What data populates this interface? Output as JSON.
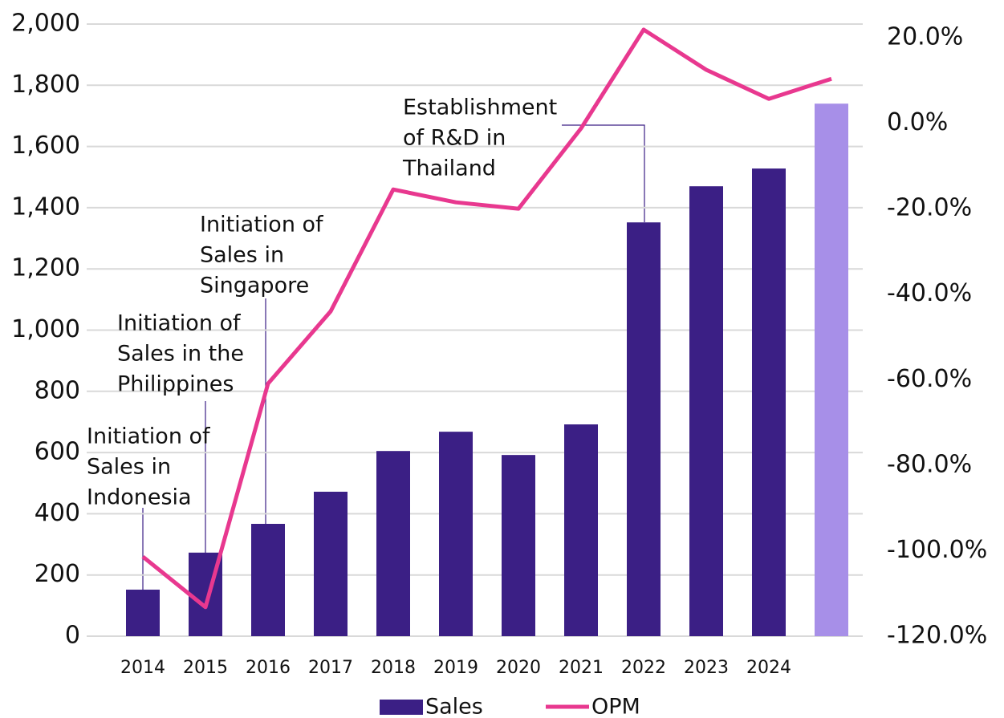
{
  "chart_data": {
    "type": "bar",
    "categories": [
      "2014",
      "2015",
      "2016",
      "2017",
      "2018",
      "2019",
      "2020",
      "2021",
      "2022",
      "2023",
      "2024",
      null
    ],
    "series": [
      {
        "name": "Sales",
        "type": "bar",
        "color": "#3b1f85",
        "point_colors": [
          "#3b1f85",
          "#3b1f85",
          "#3b1f85",
          "#3b1f85",
          "#3b1f85",
          "#3b1f85",
          "#3b1f85",
          "#3b1f85",
          "#3b1f85",
          "#3b1f85",
          "#3b1f85",
          "#a78fe8"
        ],
        "values": [
          152,
          273,
          367,
          472,
          605,
          668,
          592,
          692,
          1352,
          1470,
          1528,
          1740
        ]
      },
      {
        "name": "OPM",
        "type": "line",
        "axis": "y2",
        "color": "#e8388f",
        "values": [
          -101.4,
          -113.2,
          -60.9,
          -44,
          -15.5,
          -18.5,
          -20,
          -1.2,
          21.9,
          12.5,
          5.7,
          10.4
        ]
      }
    ],
    "ylim": [
      0,
      2000
    ],
    "yticks": [
      0,
      200,
      400,
      600,
      800,
      {
        "value": 1000,
        "label": "1,000"
      },
      {
        "value": 1200,
        "label": "1,200"
      },
      {
        "value": 1400,
        "label": "1,400"
      },
      {
        "value": 1600,
        "label": "1,600"
      },
      {
        "value": 1800,
        "label": "1,800"
      },
      {
        "value": 2000,
        "label": "2,000"
      }
    ],
    "y2lim": [
      -120,
      23.2
    ],
    "y2ticks": [
      {
        "value": -120,
        "label": "-120.0%"
      },
      {
        "value": -100,
        "label": "-100.0%"
      },
      {
        "value": -80,
        "label": "-80.0%"
      },
      {
        "value": -60,
        "label": "-60.0%"
      },
      {
        "value": -40,
        "label": "-40.0%"
      },
      {
        "value": -20,
        "label": "-20.0%"
      },
      {
        "value": 0,
        "label": "0.0%"
      },
      {
        "value": 20,
        "label": "20.0%"
      }
    ],
    "grid": true,
    "legend": "bottom",
    "annotations": [
      [
        "Initiation of",
        "Sales in",
        "Indonesia"
      ],
      [
        "Initiation of",
        "Sales in the",
        "Philippines"
      ],
      [
        "Initiation of",
        "Sales in",
        "Singapore"
      ],
      [
        "Establishment",
        "of R&D in",
        "Thailand"
      ]
    ]
  }
}
